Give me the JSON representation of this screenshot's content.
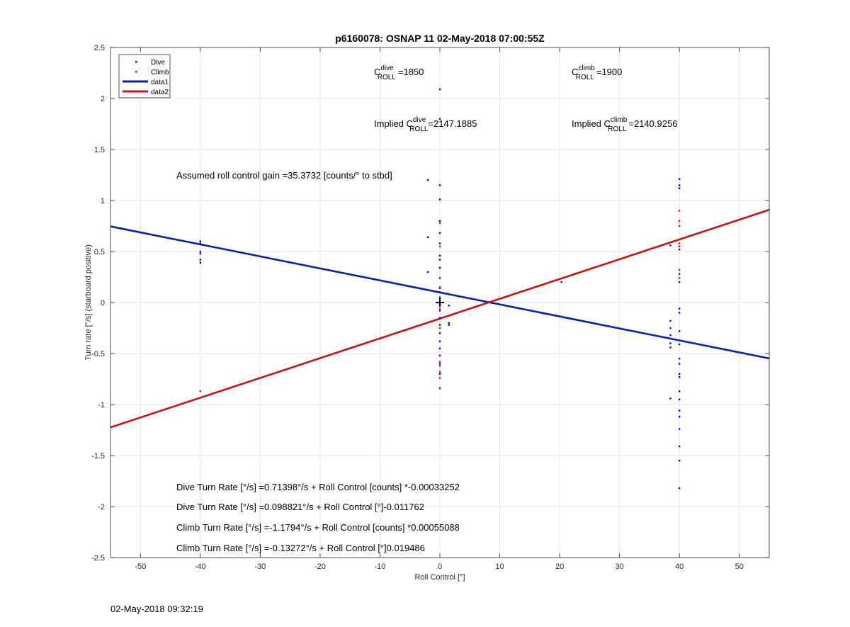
{
  "chart_data": {
    "type": "scatter",
    "title": "p6160078: OSNAP 11 02-May-2018 07:00:55Z",
    "xlabel": "Roll Control [°]",
    "ylabel": "Turn rate [°/s] (starboard positive)",
    "xlim": [
      -55,
      55
    ],
    "ylim": [
      -2.5,
      2.5
    ],
    "xticks": [
      -50,
      -40,
      -30,
      -20,
      -10,
      0,
      10,
      20,
      30,
      40,
      50
    ],
    "xtick_labels": [
      "-50",
      "-40",
      "-30",
      "-20",
      "-10",
      "0",
      "10",
      "20",
      "30",
      "40",
      "50"
    ],
    "yticks": [
      -2.5,
      -2,
      -1.5,
      -1,
      -0.5,
      0,
      0.5,
      1,
      1.5,
      2,
      2.5
    ],
    "ytick_labels": [
      "-2.5",
      "-2",
      "-1.5",
      "-1",
      "-0.5",
      "0",
      "0.5",
      "1",
      "1.5",
      "2",
      "2.5"
    ],
    "grid": true,
    "legend_position": "top-left",
    "center_marker": {
      "x": 0,
      "y": 0
    },
    "series": [
      {
        "name": "Dive",
        "kind": "points",
        "color": "#0000ff",
        "points": [
          [
            -40,
            0.6
          ],
          [
            -40,
            0.58
          ],
          [
            -40,
            0.5
          ],
          [
            -40,
            0.48
          ],
          [
            -40,
            0.42
          ],
          [
            -40,
            0.39
          ],
          [
            -2,
            1.2
          ],
          [
            -2,
            0.64
          ],
          [
            -2,
            0.3
          ],
          [
            0,
            2.09
          ],
          [
            0,
            1.8
          ],
          [
            0,
            1.15
          ],
          [
            0,
            1.01
          ],
          [
            0,
            0.8
          ],
          [
            0,
            0.68
          ],
          [
            0,
            0.58
          ],
          [
            0,
            0.46
          ],
          [
            0,
            0.42
          ],
          [
            0,
            0.34
          ],
          [
            0,
            0.24
          ],
          [
            0,
            0.14
          ],
          [
            0,
            0.1
          ],
          [
            0,
            0.05
          ],
          [
            0,
            -0.02
          ],
          [
            0,
            -0.08
          ],
          [
            0,
            -0.15
          ],
          [
            0,
            -0.22
          ],
          [
            0,
            -0.3
          ],
          [
            0,
            -0.38
          ],
          [
            0,
            -0.45
          ],
          [
            0,
            -0.52
          ],
          [
            0,
            -0.6
          ],
          [
            0,
            -0.7
          ],
          [
            0,
            -0.84
          ],
          [
            1.5,
            -0.03
          ],
          [
            1.5,
            -0.2
          ],
          [
            1.5,
            -0.22
          ],
          [
            20.3,
            0.2
          ],
          [
            38.5,
            0.56
          ],
          [
            38.5,
            -0.18
          ],
          [
            38.5,
            -0.25
          ],
          [
            38.5,
            -0.32
          ],
          [
            38.5,
            -0.4
          ],
          [
            38.5,
            -0.44
          ],
          [
            38.5,
            -0.94
          ],
          [
            40,
            1.21
          ],
          [
            40,
            1.15
          ],
          [
            40,
            1.12
          ],
          [
            40,
            0.52
          ],
          [
            40,
            0.28
          ],
          [
            40,
            0.2
          ],
          [
            40,
            -0.06
          ],
          [
            40,
            -0.1
          ],
          [
            40,
            -0.28
          ],
          [
            40,
            -0.41
          ],
          [
            40,
            -0.55
          ],
          [
            40,
            -0.6
          ],
          [
            40,
            -0.7
          ],
          [
            40,
            -0.73
          ],
          [
            40,
            -0.87
          ],
          [
            40,
            -0.95
          ],
          [
            40,
            -1.06
          ],
          [
            40,
            -1.12
          ],
          [
            40,
            -1.24
          ],
          [
            40,
            -1.41
          ],
          [
            40,
            -1.55
          ],
          [
            40,
            -1.82
          ]
        ]
      },
      {
        "name": "Climb",
        "kind": "points",
        "color": "#ff0000",
        "points": [
          [
            -40,
            -0.87
          ],
          [
            0,
            0.78
          ],
          [
            0,
            0.55
          ],
          [
            0,
            0.15
          ],
          [
            0,
            -0.06
          ],
          [
            0,
            -0.25
          ],
          [
            0,
            -0.58
          ],
          [
            0,
            -0.62
          ],
          [
            0,
            -0.68
          ],
          [
            0,
            -0.74
          ],
          [
            40,
            0.9
          ],
          [
            40,
            0.8
          ],
          [
            40,
            0.75
          ],
          [
            40,
            0.58
          ],
          [
            40,
            0.55
          ],
          [
            40,
            0.32
          ],
          [
            40,
            0.24
          ]
        ]
      },
      {
        "name": "data1",
        "kind": "line",
        "color": "#0b1fb5",
        "x": [
          -55,
          55
        ],
        "y": [
          0.746,
          -0.548
        ]
      },
      {
        "name": "data2",
        "kind": "line",
        "color": "#cc1111",
        "x": [
          -55,
          55
        ],
        "y": [
          -1.224,
          0.909
        ]
      }
    ],
    "annotations": {
      "c_dive": {
        "base": "C",
        "sup": "dive",
        "sub": "ROLL",
        "value": "=1850"
      },
      "c_climb": {
        "base": "C",
        "sup": "climb",
        "sub": "ROLL",
        "value": "=1900"
      },
      "implied_dive": {
        "prefix": "Implied C",
        "sup": "dive",
        "sub": "ROLL",
        "value": "=2147.1885"
      },
      "implied_climb": {
        "prefix": "Implied C",
        "sup": "climb",
        "sub": "ROLL",
        "value": "=2140.9256"
      },
      "gain": "Assumed roll control gain =35.3732 [counts/° to stbd]",
      "eq1": "Dive Turn Rate [°/s] =0.71398°/s + Roll Control [counts] *-0.00033252",
      "eq2": "Dive Turn Rate [°/s] =0.098821°/s + Roll Control [°]-0.011762",
      "eq3": "Climb Turn Rate [°/s] =-1.1794°/s + Roll Control [counts] *0.00055088",
      "eq4": "Climb Turn Rate [°/s] =-0.13272°/s + Roll Control [°]0.019486"
    }
  },
  "footer": {
    "timestamp": "02-May-2018 09:32:19"
  }
}
